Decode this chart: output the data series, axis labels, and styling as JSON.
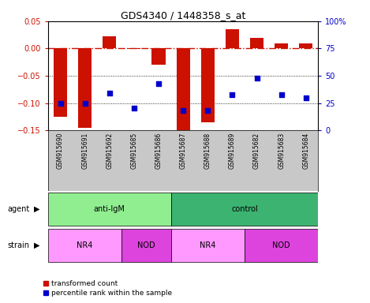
{
  "title": "GDS4340 / 1448358_s_at",
  "samples": [
    "GSM915690",
    "GSM915691",
    "GSM915692",
    "GSM915685",
    "GSM915686",
    "GSM915687",
    "GSM915688",
    "GSM915689",
    "GSM915682",
    "GSM915683",
    "GSM915684"
  ],
  "bar_values": [
    -0.125,
    -0.145,
    0.022,
    -0.001,
    -0.03,
    -0.155,
    -0.135,
    0.035,
    0.02,
    0.01,
    0.01
  ],
  "percentile_values": [
    25,
    25,
    34,
    20,
    43,
    18,
    18,
    33,
    48,
    33,
    30
  ],
  "ylim_left": [
    -0.15,
    0.05
  ],
  "ylim_right": [
    0,
    100
  ],
  "yticks_left": [
    0.05,
    0.0,
    -0.05,
    -0.1,
    -0.15
  ],
  "yticks_right": [
    100,
    75,
    50,
    25,
    0
  ],
  "agent_groups": [
    {
      "label": "anti-IgM",
      "start": 0,
      "end": 5,
      "color": "#90EE90"
    },
    {
      "label": "control",
      "start": 5,
      "end": 11,
      "color": "#3CB371"
    }
  ],
  "strain_groups": [
    {
      "label": "NR4",
      "start": 0,
      "end": 3,
      "color": "#FF99FF"
    },
    {
      "label": "NOD",
      "start": 3,
      "end": 5,
      "color": "#DD44DD"
    },
    {
      "label": "NR4",
      "start": 5,
      "end": 8,
      "color": "#FF99FF"
    },
    {
      "label": "NOD",
      "start": 8,
      "end": 11,
      "color": "#DD44DD"
    }
  ],
  "bar_color": "#CC1100",
  "dot_color": "#0000CC",
  "ref_line_color": "#CC1100",
  "label_agent": "agent",
  "label_strain": "strain",
  "legend_bar_label": "transformed count",
  "legend_dot_label": "percentile rank within the sample",
  "background_color": "#FFFFFF",
  "tick_color_left": "#CC1100",
  "tick_color_right": "#0000CC",
  "xtick_bg": "#C8C8C8"
}
